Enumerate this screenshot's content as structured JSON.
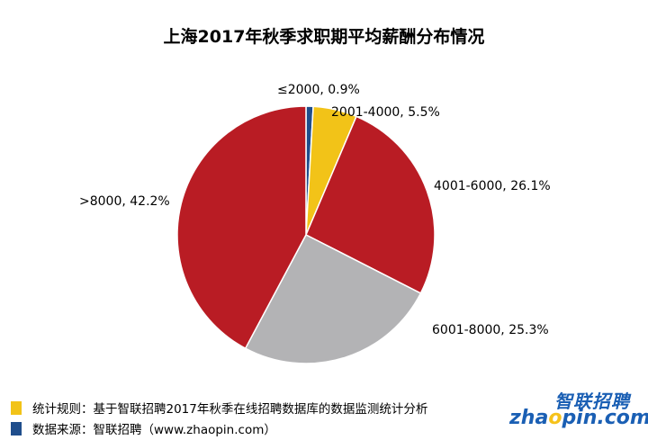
{
  "chart_data": {
    "type": "pie",
    "title": "上海2017年秋季求职期平均薪酬分布情况",
    "slices": [
      {
        "label": "≤2000, 0.9%",
        "value": 0.9,
        "color": "#1f4e8c"
      },
      {
        "label": "2001-4000, 5.5%",
        "value": 5.5,
        "color": "#f2c318"
      },
      {
        "label": "4001-6000, 26.1%",
        "value": 26.1,
        "color": "#b91c24"
      },
      {
        "label": "6001-8000, 25.3%",
        "value": 25.3,
        "color": "#b3b3b5"
      },
      {
        "label": ">8000, 42.2%",
        "value": 42.2,
        "color": "#b91c24"
      }
    ]
  },
  "footer": {
    "note1": "统计规则：基于智联招聘2017年秋季在线招聘数据库的数据监测统计分析",
    "note1_color": "#f2c318",
    "note2": "数据来源：智联招聘（www.zhaopin.com）",
    "note2_color": "#1f4e8c"
  },
  "logo": {
    "cn": "智联招聘",
    "en_prefix": "zha",
    "en_o": "o",
    "en_suffix": "pin.com"
  }
}
